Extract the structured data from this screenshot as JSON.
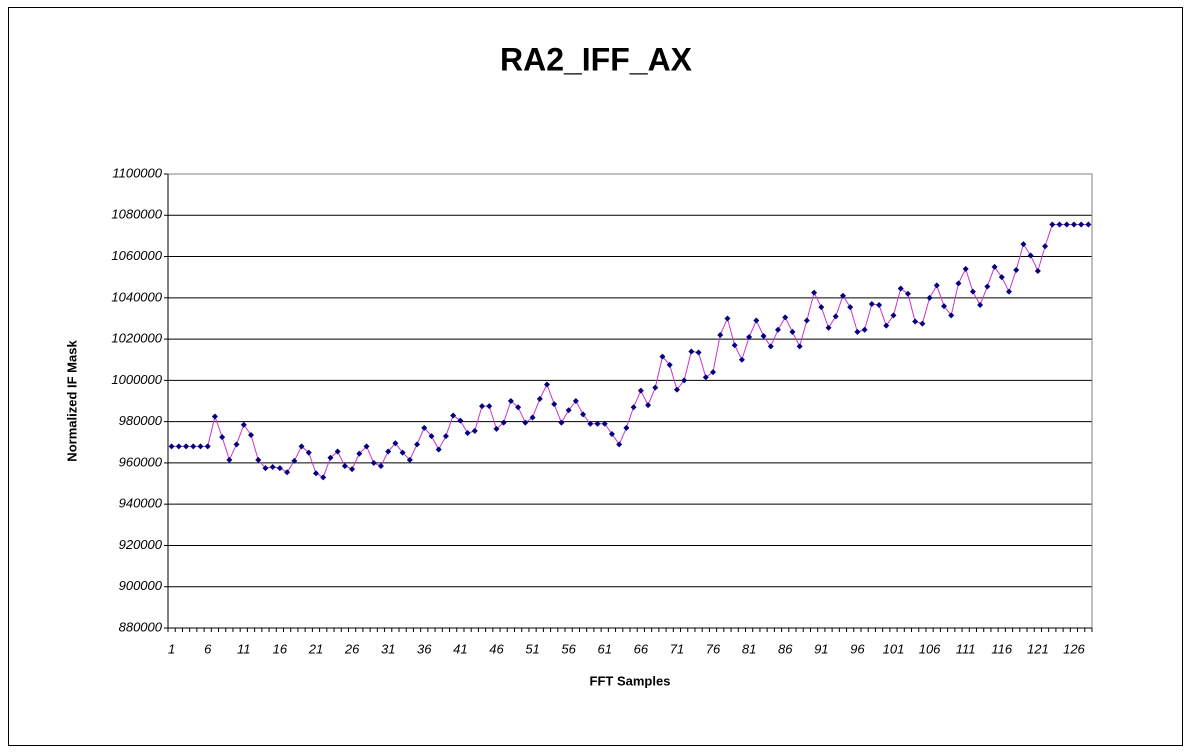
{
  "chart_data": {
    "type": "line",
    "title": "RA2_IFF_AX",
    "x_label": "FFT Samples",
    "y_label": "Normalized IF Mask",
    "categories": [
      "1",
      null,
      null,
      null,
      null,
      "6",
      null,
      null,
      null,
      null,
      "11",
      null,
      null,
      null,
      null,
      "16",
      null,
      null,
      null,
      null,
      "21",
      null,
      null,
      null,
      null,
      "26",
      null,
      null,
      null,
      null,
      "31",
      null,
      null,
      null,
      null,
      "36",
      null,
      null,
      null,
      null,
      "41",
      null,
      null,
      null,
      null,
      "46",
      null,
      null,
      null,
      null,
      "51",
      null,
      null,
      null,
      null,
      "56",
      null,
      null,
      null,
      null,
      "61",
      null,
      null,
      null,
      null,
      "66",
      null,
      null,
      null,
      null,
      "71",
      null,
      null,
      null,
      null,
      "76",
      null,
      null,
      null,
      null,
      "81",
      null,
      null,
      null,
      null,
      "86",
      null,
      null,
      null,
      null,
      "91",
      null,
      null,
      null,
      null,
      "96",
      null,
      null,
      null,
      null,
      "101",
      null,
      null,
      null,
      null,
      "106",
      null,
      null,
      null,
      null,
      "111",
      null,
      null,
      null,
      null,
      "116",
      null,
      null,
      null,
      null,
      "121",
      null,
      null,
      null,
      null,
      "126",
      null,
      null
    ],
    "values": [
      968000,
      968000,
      968000,
      968000,
      968000,
      968000,
      982500,
      972500,
      961500,
      969000,
      978500,
      973500,
      961500,
      957500,
      958000,
      957500,
      955500,
      961000,
      968000,
      965000,
      955000,
      953000,
      962500,
      965500,
      958500,
      957000,
      964500,
      968000,
      960000,
      958500,
      965500,
      969500,
      965000,
      961500,
      969000,
      977000,
      973000,
      966500,
      973000,
      983000,
      980500,
      974500,
      975500,
      987500,
      987500,
      976500,
      979500,
      990000,
      987000,
      979500,
      982000,
      991000,
      998000,
      988500,
      979500,
      985500,
      990000,
      983500,
      979000,
      979000,
      979000,
      974000,
      969000,
      977000,
      987000,
      995000,
      988000,
      996500,
      1011500,
      1007500,
      995500,
      1000000,
      1014000,
      1013500,
      1001500,
      1004000,
      1022000,
      1030000,
      1017000,
      1010000,
      1021000,
      1029000,
      1021500,
      1016500,
      1024500,
      1030500,
      1023500,
      1016500,
      1029000,
      1042500,
      1035500,
      1025500,
      1031000,
      1041000,
      1035500,
      1023500,
      1024500,
      1037000,
      1036500,
      1026500,
      1031500,
      1044500,
      1042000,
      1028500,
      1027500,
      1040000,
      1046000,
      1036000,
      1031500,
      1047000,
      1054000,
      1043000,
      1036500,
      1045500,
      1055000,
      1050000,
      1043000,
      1053500,
      1066000,
      1060500,
      1053000,
      1065000,
      1075500,
      1075500,
      1075500,
      1075500,
      1075500,
      1075500
    ],
    "marker_color": "#000080",
    "line_color": "#cc33cc",
    "ylim": [
      880000,
      1100000
    ],
    "yticks": [
      880000,
      900000,
      920000,
      940000,
      960000,
      980000,
      1000000,
      1020000,
      1040000,
      1060000,
      1080000,
      1100000
    ],
    "grid": true
  }
}
